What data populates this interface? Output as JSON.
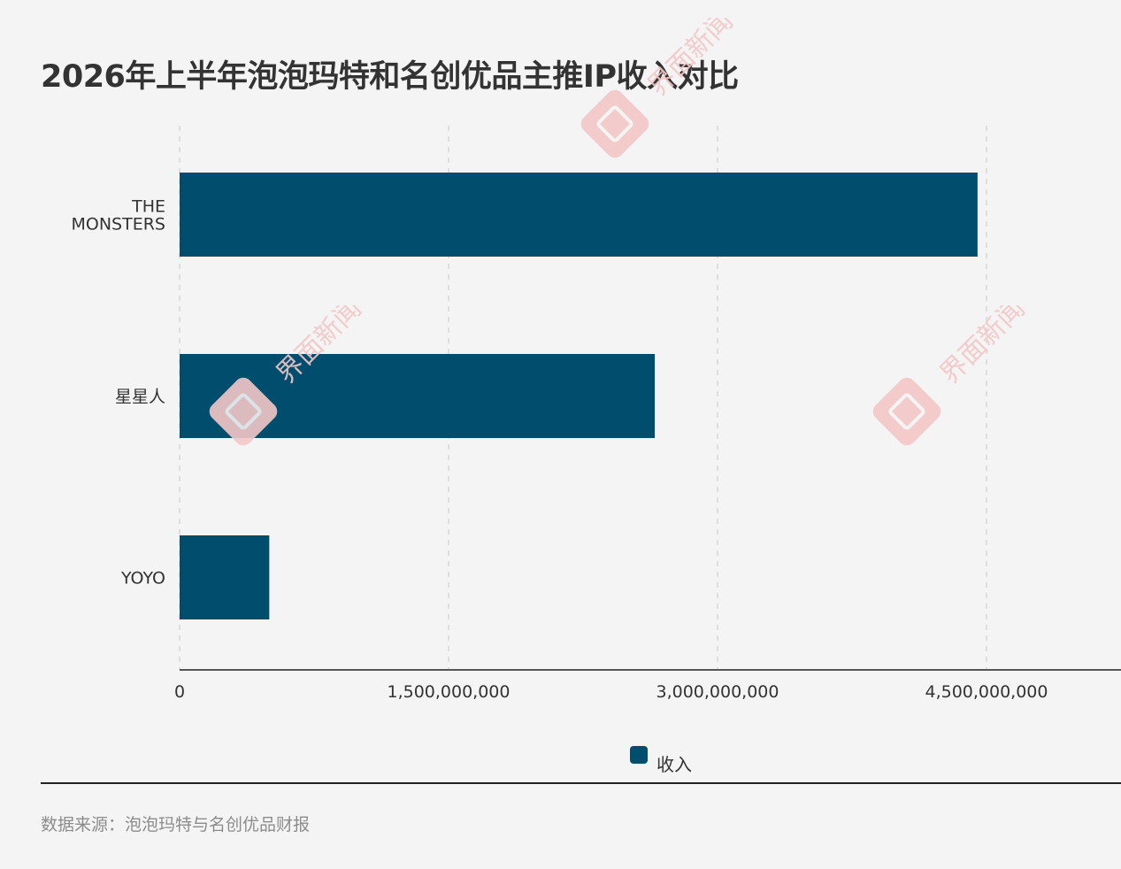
{
  "title": "2026年上半年泡泡玛特和名创优品主推IP收入对比",
  "source": "数据来源：泡泡玛特与名创优品财报",
  "watermark_text": "界面新闻",
  "colors": {
    "bar": "#004d6e",
    "grid": "#d6d6d6",
    "axis": "#555555",
    "text": "#333333",
    "watermark": "#f3c7c7"
  },
  "chart_data": {
    "type": "bar",
    "orientation": "horizontal",
    "title": "2026年上半年泡泡玛特和名创优品主推IP收入对比",
    "categories": [
      "THE MONSTERS",
      "星星人",
      "YOYO"
    ],
    "category_lines": [
      [
        "THE",
        "MONSTERS"
      ],
      [
        "星星人"
      ],
      [
        "YOYO"
      ]
    ],
    "series": [
      {
        "name": "收入",
        "values": [
          4450000000,
          2650000000,
          500000000
        ]
      }
    ],
    "xlim": [
      0,
      5250000000
    ],
    "x_ticks": [
      0,
      1500000000,
      3000000000,
      4500000000
    ],
    "x_tick_labels": [
      "0",
      "1,500,000,000",
      "3,000,000,000",
      "4,500,000,000"
    ],
    "grid": "vertical-dashed",
    "legend_position": "bottom-center"
  }
}
